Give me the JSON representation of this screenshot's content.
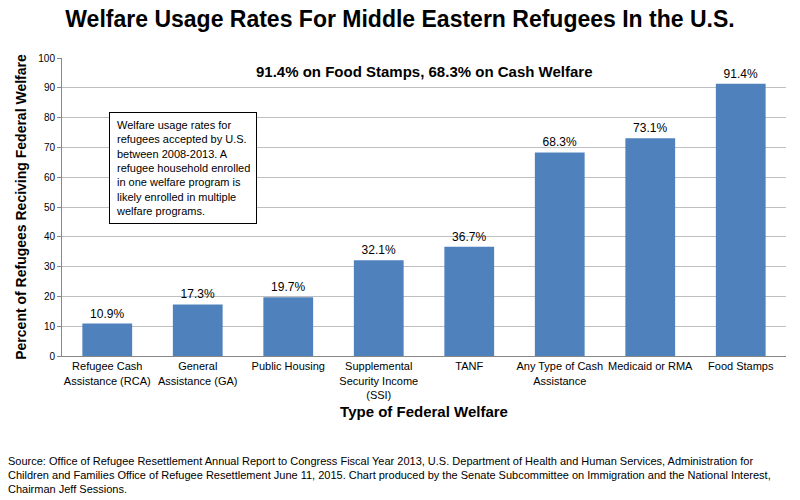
{
  "chart_data": {
    "type": "bar",
    "title": "Welfare Usage Rates For Middle Eastern Refugees In the U.S.",
    "subtitle": "91.4% on Food Stamps, 68.3% on Cash Welfare",
    "x_label": "Type of Federal Welfare",
    "y_label": "Percent of Refugees Reciving Federal Welfare",
    "categories": [
      "Refugee Cash Assistance (RCA)",
      "General Assistance (GA)",
      "Public Housing",
      "Supplemental Security Income (SSI)",
      "TANF",
      "Any Type of Cash Assistance",
      "Medicaid or RMA",
      "Food Stamps"
    ],
    "values": [
      10.9,
      17.3,
      19.7,
      32.1,
      36.7,
      68.3,
      73.1,
      91.4
    ],
    "value_labels": [
      "10.9%",
      "17.3%",
      "19.7%",
      "32.1%",
      "36.7%",
      "68.3%",
      "73.1%",
      "91.4%"
    ],
    "data_labels": true,
    "color": "#4f81bd",
    "ylim": [
      0,
      100
    ],
    "yticks": [
      0,
      10,
      20,
      30,
      40,
      50,
      60,
      70,
      80,
      90,
      100
    ],
    "grid": true,
    "annotation": "Welfare usage rates for refugees accepted by U.S. between 2008-2013. A refugee household enrolled in one welfare program is likely enrolled in multiple welfare programs.",
    "source": "Source: Office of Refugee Resettlement Annual Report to Congress Fiscal Year 2013, U.S. Department of Health and Human Services, Administration for Children and Families Office of Refugee Resettlement June 11, 2015. Chart produced by the Senate Subcommittee on Immigration and the National Interest, Chairman Jeff Sessions."
  }
}
